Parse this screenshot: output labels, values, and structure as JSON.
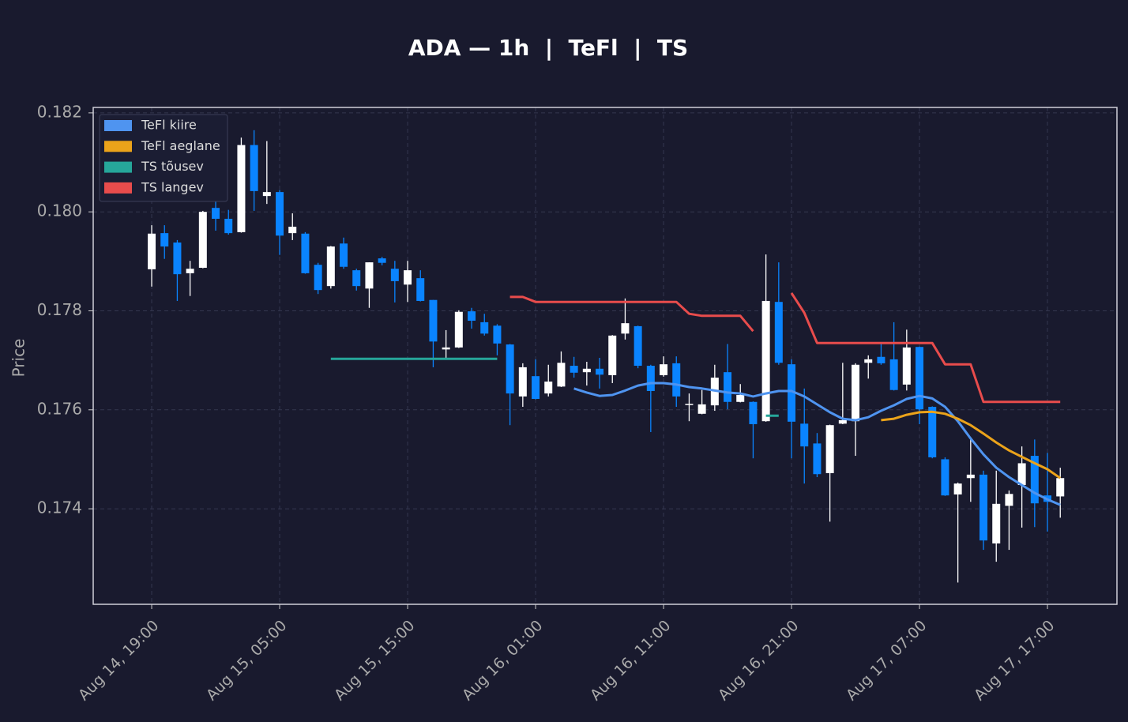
{
  "chart_data": {
    "type": "candlestick",
    "title": "ADA — 1h  |  TeFl  |  TS",
    "ylabel": "Price",
    "categories": [
      "Aug 14, 19:00",
      null,
      null,
      null,
      null,
      null,
      null,
      null,
      null,
      null,
      "Aug 15, 05:00",
      null,
      null,
      null,
      null,
      null,
      null,
      null,
      null,
      null,
      "Aug 15, 15:00",
      null,
      null,
      null,
      null,
      null,
      null,
      null,
      null,
      null,
      "Aug 16, 01:00",
      null,
      null,
      null,
      null,
      null,
      null,
      null,
      null,
      null,
      "Aug 16, 11:00",
      null,
      null,
      null,
      null,
      null,
      null,
      null,
      null,
      null,
      "Aug 16, 21:00",
      null,
      null,
      null,
      null,
      null,
      null,
      null,
      null,
      null,
      "Aug 17, 07:00",
      null,
      null,
      null,
      null,
      null,
      null,
      null,
      null,
      null,
      "Aug 17, 17:00",
      null
    ],
    "ohlc": {
      "open": [
        0.17884,
        0.17957,
        0.17938,
        0.17876,
        0.17887,
        0.18008,
        0.17986,
        0.17959,
        0.18135,
        0.18032,
        0.1804,
        0.17957,
        0.17956,
        0.17893,
        0.1785,
        0.17936,
        0.17882,
        0.17845,
        0.17906,
        0.17885,
        0.17853,
        0.17866,
        0.17822,
        0.17722,
        0.17726,
        0.17799,
        0.17777,
        0.1777,
        0.17732,
        0.17627,
        0.17668,
        0.17633,
        0.17647,
        0.17689,
        0.17676,
        0.17683,
        0.1767,
        0.17754,
        0.17769,
        0.17689,
        0.1767,
        0.17694,
        0.1761,
        0.17592,
        0.17609,
        0.17676,
        0.17616,
        0.17616,
        0.17577,
        0.17818,
        0.17692,
        0.17572,
        0.17532,
        0.17472,
        0.17572,
        0.17577,
        0.17695,
        0.17707,
        0.17702,
        0.17651,
        0.17727,
        0.17606,
        0.175,
        0.17429,
        0.17462,
        0.17469,
        0.1733,
        0.17406,
        0.17448,
        0.17507,
        0.17427,
        0.17425
      ],
      "high": [
        0.17973,
        0.17973,
        0.17943,
        0.17901,
        0.18002,
        0.18037,
        0.18004,
        0.1815,
        0.18165,
        0.18143,
        0.18044,
        0.17997,
        0.17959,
        0.17897,
        0.17931,
        0.17948,
        0.17885,
        0.17898,
        0.17909,
        0.17901,
        0.17901,
        0.17882,
        0.17822,
        0.17761,
        0.17801,
        0.17806,
        0.17794,
        0.17773,
        0.17733,
        0.17694,
        0.17702,
        0.17691,
        0.17718,
        0.17707,
        0.17697,
        0.17705,
        0.17751,
        0.17825,
        0.1777,
        0.17691,
        0.17708,
        0.17708,
        0.17633,
        0.1764,
        0.17691,
        0.17733,
        0.17652,
        0.17617,
        0.17914,
        0.17898,
        0.17702,
        0.17643,
        0.17553,
        0.1757,
        0.17695,
        0.17694,
        0.1771,
        0.17734,
        0.17777,
        0.17762,
        0.17728,
        0.17607,
        0.17504,
        0.17453,
        0.17545,
        0.17477,
        0.17477,
        0.17437,
        0.17526,
        0.1754,
        0.17513,
        0.17483
      ],
      "low": [
        0.17849,
        0.17905,
        0.1782,
        0.1783,
        0.17886,
        0.17962,
        0.17954,
        0.17958,
        0.18002,
        0.18016,
        0.17913,
        0.17943,
        0.17875,
        0.17834,
        0.17845,
        0.17885,
        0.17841,
        0.17806,
        0.17892,
        0.17817,
        0.17818,
        0.17819,
        0.17686,
        0.17705,
        0.17725,
        0.17764,
        0.1775,
        0.1771,
        0.17569,
        0.17606,
        0.17621,
        0.17627,
        0.17646,
        0.17665,
        0.17649,
        0.17643,
        0.17654,
        0.17742,
        0.17684,
        0.17555,
        0.17667,
        0.17606,
        0.17577,
        0.17591,
        0.17598,
        0.17601,
        0.17615,
        0.17502,
        0.17576,
        0.17691,
        0.17502,
        0.17451,
        0.17464,
        0.17374,
        0.17571,
        0.17507,
        0.17663,
        0.17691,
        0.17639,
        0.17639,
        0.17571,
        0.17502,
        0.17426,
        0.17251,
        0.17414,
        0.17317,
        0.17293,
        0.17317,
        0.17362,
        0.17363,
        0.17354,
        0.17382
      ],
      "close": [
        0.17956,
        0.1793,
        0.17874,
        0.17885,
        0.18,
        0.17986,
        0.17957,
        0.18135,
        0.18042,
        0.1804,
        0.17952,
        0.1797,
        0.17876,
        0.17842,
        0.1793,
        0.17889,
        0.1785,
        0.17898,
        0.17897,
        0.1786,
        0.17882,
        0.1782,
        0.17738,
        0.17726,
        0.17798,
        0.1778,
        0.17754,
        0.17734,
        0.17633,
        0.17686,
        0.17622,
        0.17657,
        0.17695,
        0.17675,
        0.17683,
        0.17671,
        0.1775,
        0.17775,
        0.17689,
        0.17638,
        0.17692,
        0.17627,
        0.17612,
        0.17611,
        0.17665,
        0.17616,
        0.1763,
        0.17571,
        0.1782,
        0.17695,
        0.17576,
        0.17526,
        0.1747,
        0.17569,
        0.17579,
        0.17691,
        0.17702,
        0.17694,
        0.1764,
        0.17726,
        0.17601,
        0.17504,
        0.17427,
        0.17451,
        0.17469,
        0.17336,
        0.1741,
        0.1743,
        0.17492,
        0.17411,
        0.17414,
        0.17462
      ]
    },
    "up_color": "#ffffff",
    "down_color": "#0a84ff",
    "series": [
      {
        "name": "TeFl kiire",
        "color": "#4f94f0",
        "values": [
          null,
          null,
          null,
          null,
          null,
          null,
          null,
          null,
          null,
          null,
          null,
          null,
          null,
          null,
          null,
          null,
          null,
          null,
          null,
          null,
          null,
          null,
          null,
          null,
          null,
          null,
          null,
          null,
          null,
          null,
          null,
          null,
          null,
          0.17643,
          0.17635,
          0.17628,
          0.1763,
          0.17639,
          0.17649,
          0.17654,
          0.17654,
          0.17651,
          0.17646,
          0.17643,
          0.17639,
          0.17635,
          0.17633,
          0.17627,
          0.17633,
          0.17638,
          0.17638,
          0.17627,
          0.17611,
          0.17595,
          0.17582,
          0.17579,
          0.17585,
          0.17598,
          0.17609,
          0.17622,
          0.17628,
          0.17623,
          0.17606,
          0.17577,
          0.17542,
          0.1751,
          0.17483,
          0.17464,
          0.17448,
          0.17432,
          0.17419,
          0.17408
        ]
      },
      {
        "name": "TeFl aeglane",
        "color": "#eba31a",
        "values": [
          null,
          null,
          null,
          null,
          null,
          null,
          null,
          null,
          null,
          null,
          null,
          null,
          null,
          null,
          null,
          null,
          null,
          null,
          null,
          null,
          null,
          null,
          null,
          null,
          null,
          null,
          null,
          null,
          null,
          null,
          null,
          null,
          null,
          null,
          null,
          null,
          null,
          null,
          null,
          null,
          null,
          null,
          null,
          null,
          null,
          null,
          null,
          null,
          null,
          null,
          null,
          null,
          null,
          null,
          null,
          null,
          null,
          0.17579,
          0.17582,
          0.1759,
          0.17595,
          0.17596,
          0.17592,
          0.17582,
          0.17569,
          0.17552,
          0.17534,
          0.17518,
          0.17505,
          0.17492,
          0.1748,
          0.17462
        ]
      },
      {
        "name": "TS tõusev",
        "color": "#26a69a",
        "values": [
          null,
          null,
          null,
          null,
          null,
          null,
          null,
          null,
          null,
          null,
          null,
          null,
          null,
          null,
          0.17703,
          0.17703,
          0.17703,
          0.17703,
          0.17703,
          0.17703,
          0.17703,
          0.17703,
          0.17703,
          0.17703,
          0.17703,
          0.17703,
          0.17703,
          0.17703,
          null,
          null,
          null,
          null,
          null,
          null,
          null,
          null,
          null,
          null,
          null,
          null,
          null,
          null,
          null,
          null,
          null,
          null,
          null,
          null,
          0.17588,
          0.17588,
          null,
          null,
          null,
          null,
          null,
          null,
          null,
          null,
          null,
          null,
          null,
          null,
          null,
          null,
          null,
          null,
          null,
          null,
          null,
          null,
          null,
          null
        ]
      },
      {
        "name": "TS langev",
        "color": "#e84c4c",
        "values": [
          null,
          null,
          null,
          null,
          null,
          null,
          null,
          null,
          null,
          null,
          null,
          null,
          null,
          null,
          null,
          null,
          null,
          null,
          null,
          null,
          null,
          null,
          null,
          null,
          null,
          null,
          null,
          null,
          0.17828,
          0.17828,
          0.17818,
          0.17818,
          0.17818,
          0.17818,
          0.17818,
          0.17818,
          0.17818,
          0.17818,
          0.17818,
          0.17818,
          0.17818,
          0.17818,
          0.17794,
          0.1779,
          0.1779,
          0.1779,
          0.1779,
          0.17759,
          null,
          null,
          0.17836,
          0.17796,
          0.17735,
          0.17735,
          0.17735,
          0.17735,
          0.17735,
          0.17735,
          0.17735,
          0.17735,
          0.17735,
          0.17735,
          0.17692,
          0.17692,
          0.17692,
          0.17616,
          0.17616,
          0.17616,
          0.17616,
          0.17616,
          0.17616,
          0.17616
        ]
      }
    ],
    "ylim": [
      0.17207,
      0.18211
    ],
    "yticks": [
      0.174,
      0.176,
      0.178,
      {
        "value": 0.18,
        "label": "0.180"
      },
      0.182
    ],
    "grid": true,
    "legend": "upper left"
  }
}
